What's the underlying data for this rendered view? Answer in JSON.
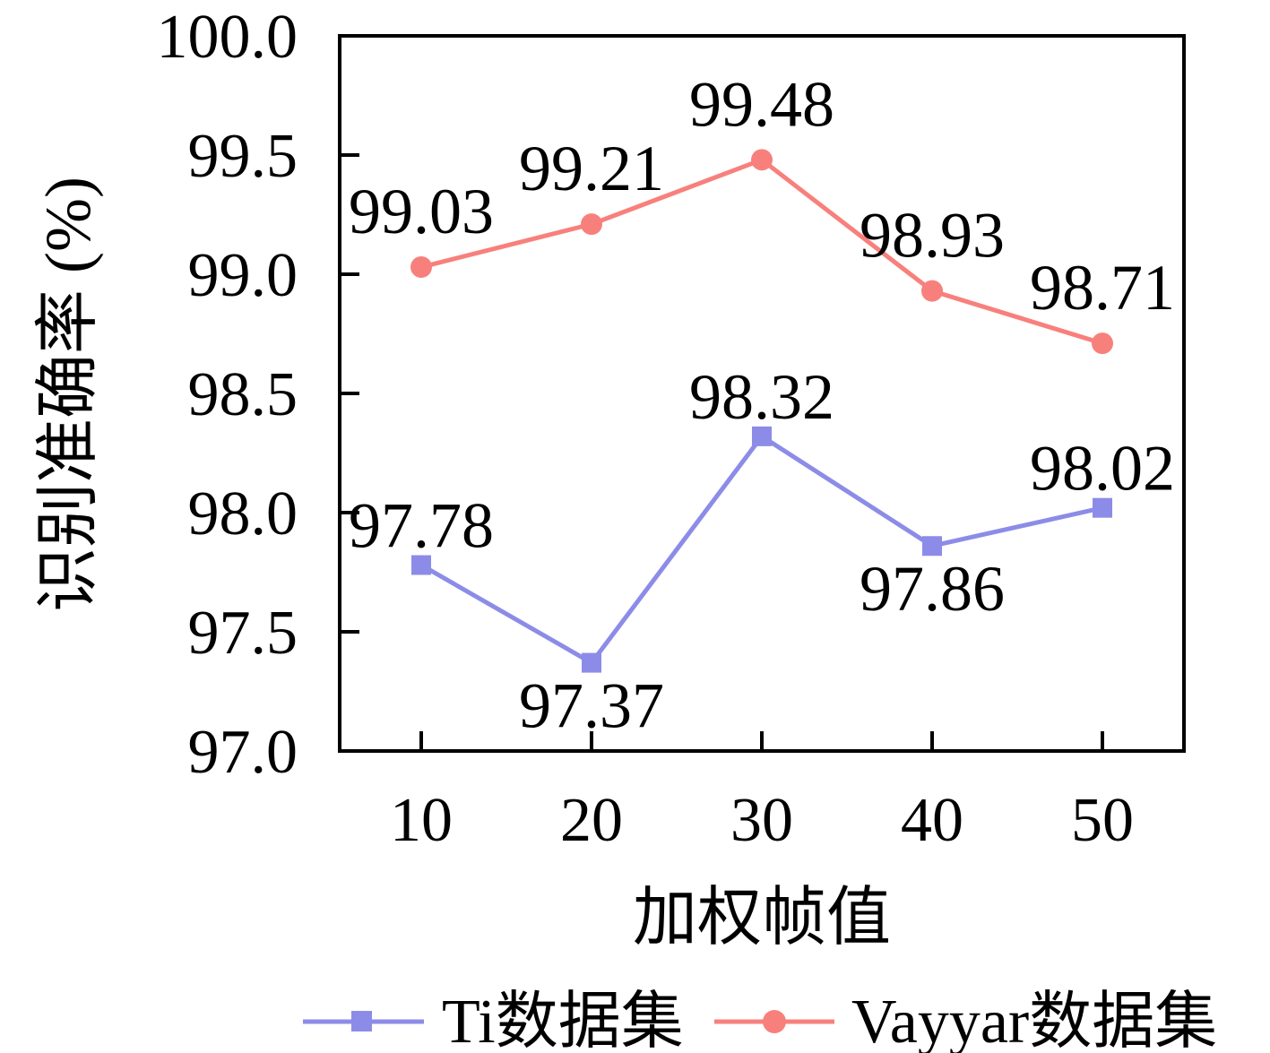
{
  "figure": {
    "background_color": "#ffffff",
    "axis_color": "#000000",
    "text_color": "#000000"
  },
  "chart_data": {
    "type": "line",
    "title": "",
    "xlabel": "加权帧值",
    "ylabel": "识别准确率 (%)",
    "x": [
      10,
      20,
      30,
      40,
      50
    ],
    "xtick_labels": [
      "10",
      "20",
      "30",
      "40",
      "50"
    ],
    "ylim": [
      97.0,
      100.0
    ],
    "ytick_step": 0.5,
    "yticks": [
      97.0,
      97.5,
      98.0,
      98.5,
      99.0,
      99.5,
      100.0
    ],
    "ytick_labels": [
      "97.0",
      "97.5",
      "98.0",
      "98.5",
      "99.0",
      "99.5",
      "100.0"
    ],
    "grid": false,
    "legend_position": "bottom-center",
    "series": [
      {
        "name": "Ti数据集",
        "color": "#8C8CE8",
        "marker": "square",
        "values": [
          97.78,
          97.37,
          98.32,
          97.86,
          98.02
        ],
        "point_labels": [
          "97.78",
          "97.37",
          "98.32",
          "97.86",
          "98.02"
        ],
        "label_placement": [
          "above",
          "below",
          "above",
          "below",
          "above"
        ]
      },
      {
        "name": "Vayyar数据集",
        "color": "#F8807C",
        "marker": "circle",
        "values": [
          99.03,
          99.21,
          99.48,
          98.93,
          98.71
        ],
        "point_labels": [
          "99.03",
          "99.21",
          "99.48",
          "98.93",
          "98.71"
        ],
        "label_placement": [
          "above",
          "above",
          "above",
          "above",
          "above"
        ]
      }
    ]
  }
}
